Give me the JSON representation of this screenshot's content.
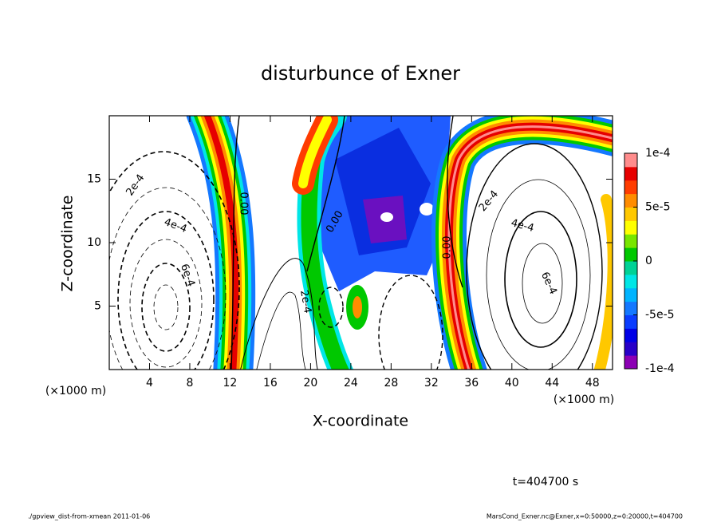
{
  "chart_data": {
    "type": "contour",
    "title": "disturbunce of Exner",
    "x_label": "X-coordinate",
    "y_label": "Z-coordinate",
    "x_unit": "(×1000 m)",
    "x_unit_right": "(×1000 m)",
    "xlim": [
      0,
      50
    ],
    "ylim": [
      0,
      20
    ],
    "xticks": [
      4,
      8,
      12,
      16,
      20,
      24,
      28,
      32,
      36,
      40,
      44,
      48
    ],
    "yticks": [
      5,
      10,
      15
    ],
    "colorbar": {
      "lim": [
        -0.0001,
        0.0001
      ],
      "ticks": [
        {
          "value": -0.0001,
          "label": "-1e-4"
        },
        {
          "value": -5e-05,
          "label": "-5e-5"
        },
        0,
        {
          "value": 5e-05,
          "label": "5e-5"
        },
        {
          "value": 0.0001,
          "label": "1e-4"
        }
      ],
      "colors": [
        "#8c00b4",
        "#2800c8",
        "#0000e6",
        "#0a3cff",
        "#1478ff",
        "#00b4ff",
        "#00e6e6",
        "#00d296",
        "#00c800",
        "#78e600",
        "#ffff00",
        "#ffc800",
        "#ff8c00",
        "#ff3c00",
        "#e60000",
        "#ff8c8c"
      ]
    },
    "contour_labels": [
      "2e-4",
      "4e-4",
      "6e-4",
      "0.00",
      "0.00",
      "2e-4",
      "0.00",
      "2e-4",
      "4e-4",
      "6e-4"
    ],
    "time_label": "t=404700 s",
    "footer_left": "./gpview_dist-from-xmean  2011-01-06",
    "footer_right": "MarsCond_Exner.nc@Exner,x=0:50000,z=0:20000,t=404700"
  }
}
